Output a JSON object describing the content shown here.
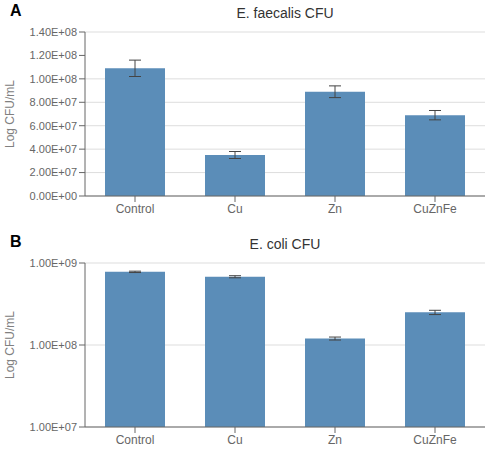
{
  "chart_data": [
    {
      "type": "bar",
      "title": "E. faecalis CFU",
      "ylabel": "Log CFU/mL",
      "categories": [
        "Control",
        "Cu",
        "Zn",
        "CuZnFe"
      ],
      "values": [
        109000000,
        35000000,
        89000000,
        69000000
      ],
      "errors": [
        7000000,
        3000000,
        5000000,
        4000000
      ],
      "color": "#5B8DB8",
      "ylim": [
        0,
        140000000
      ],
      "yticks": [
        {
          "value": 0,
          "label": "0.00E+00"
        },
        {
          "value": 20000000,
          "label": "2.00E+07"
        },
        {
          "value": 40000000,
          "label": "4.00E+07"
        },
        {
          "value": 60000000,
          "label": "6.00E+07"
        },
        {
          "value": 80000000,
          "label": "8.00E+07"
        },
        {
          "value": 100000000,
          "label": "1.00E+08"
        },
        {
          "value": 120000000,
          "label": "1.20E+08"
        },
        {
          "value": 140000000,
          "label": "1.40E+08"
        }
      ],
      "grid": true,
      "annotations": [
        {
          "text": "A"
        }
      ]
    },
    {
      "type": "bar",
      "title": "E. coli CFU",
      "ylabel": "Log CFU/mL",
      "categories": [
        "Control",
        "Cu",
        "Zn",
        "CuZnFe"
      ],
      "values": [
        780000000,
        680000000,
        120000000,
        250000000
      ],
      "errors": [
        15000000,
        20000000,
        5000000,
        15000000
      ],
      "color": "#5B8DB8",
      "ylim": [
        10000000,
        1000000000
      ],
      "yticks": [
        {
          "value": 10000000,
          "label": "1.00E+07"
        },
        {
          "value": 100000000,
          "label": "1.00E+08"
        },
        {
          "value": 1000000000,
          "label": "1.00E+09"
        }
      ],
      "log": "y",
      "grid": true,
      "annotations": [
        {
          "text": "B"
        }
      ]
    }
  ]
}
